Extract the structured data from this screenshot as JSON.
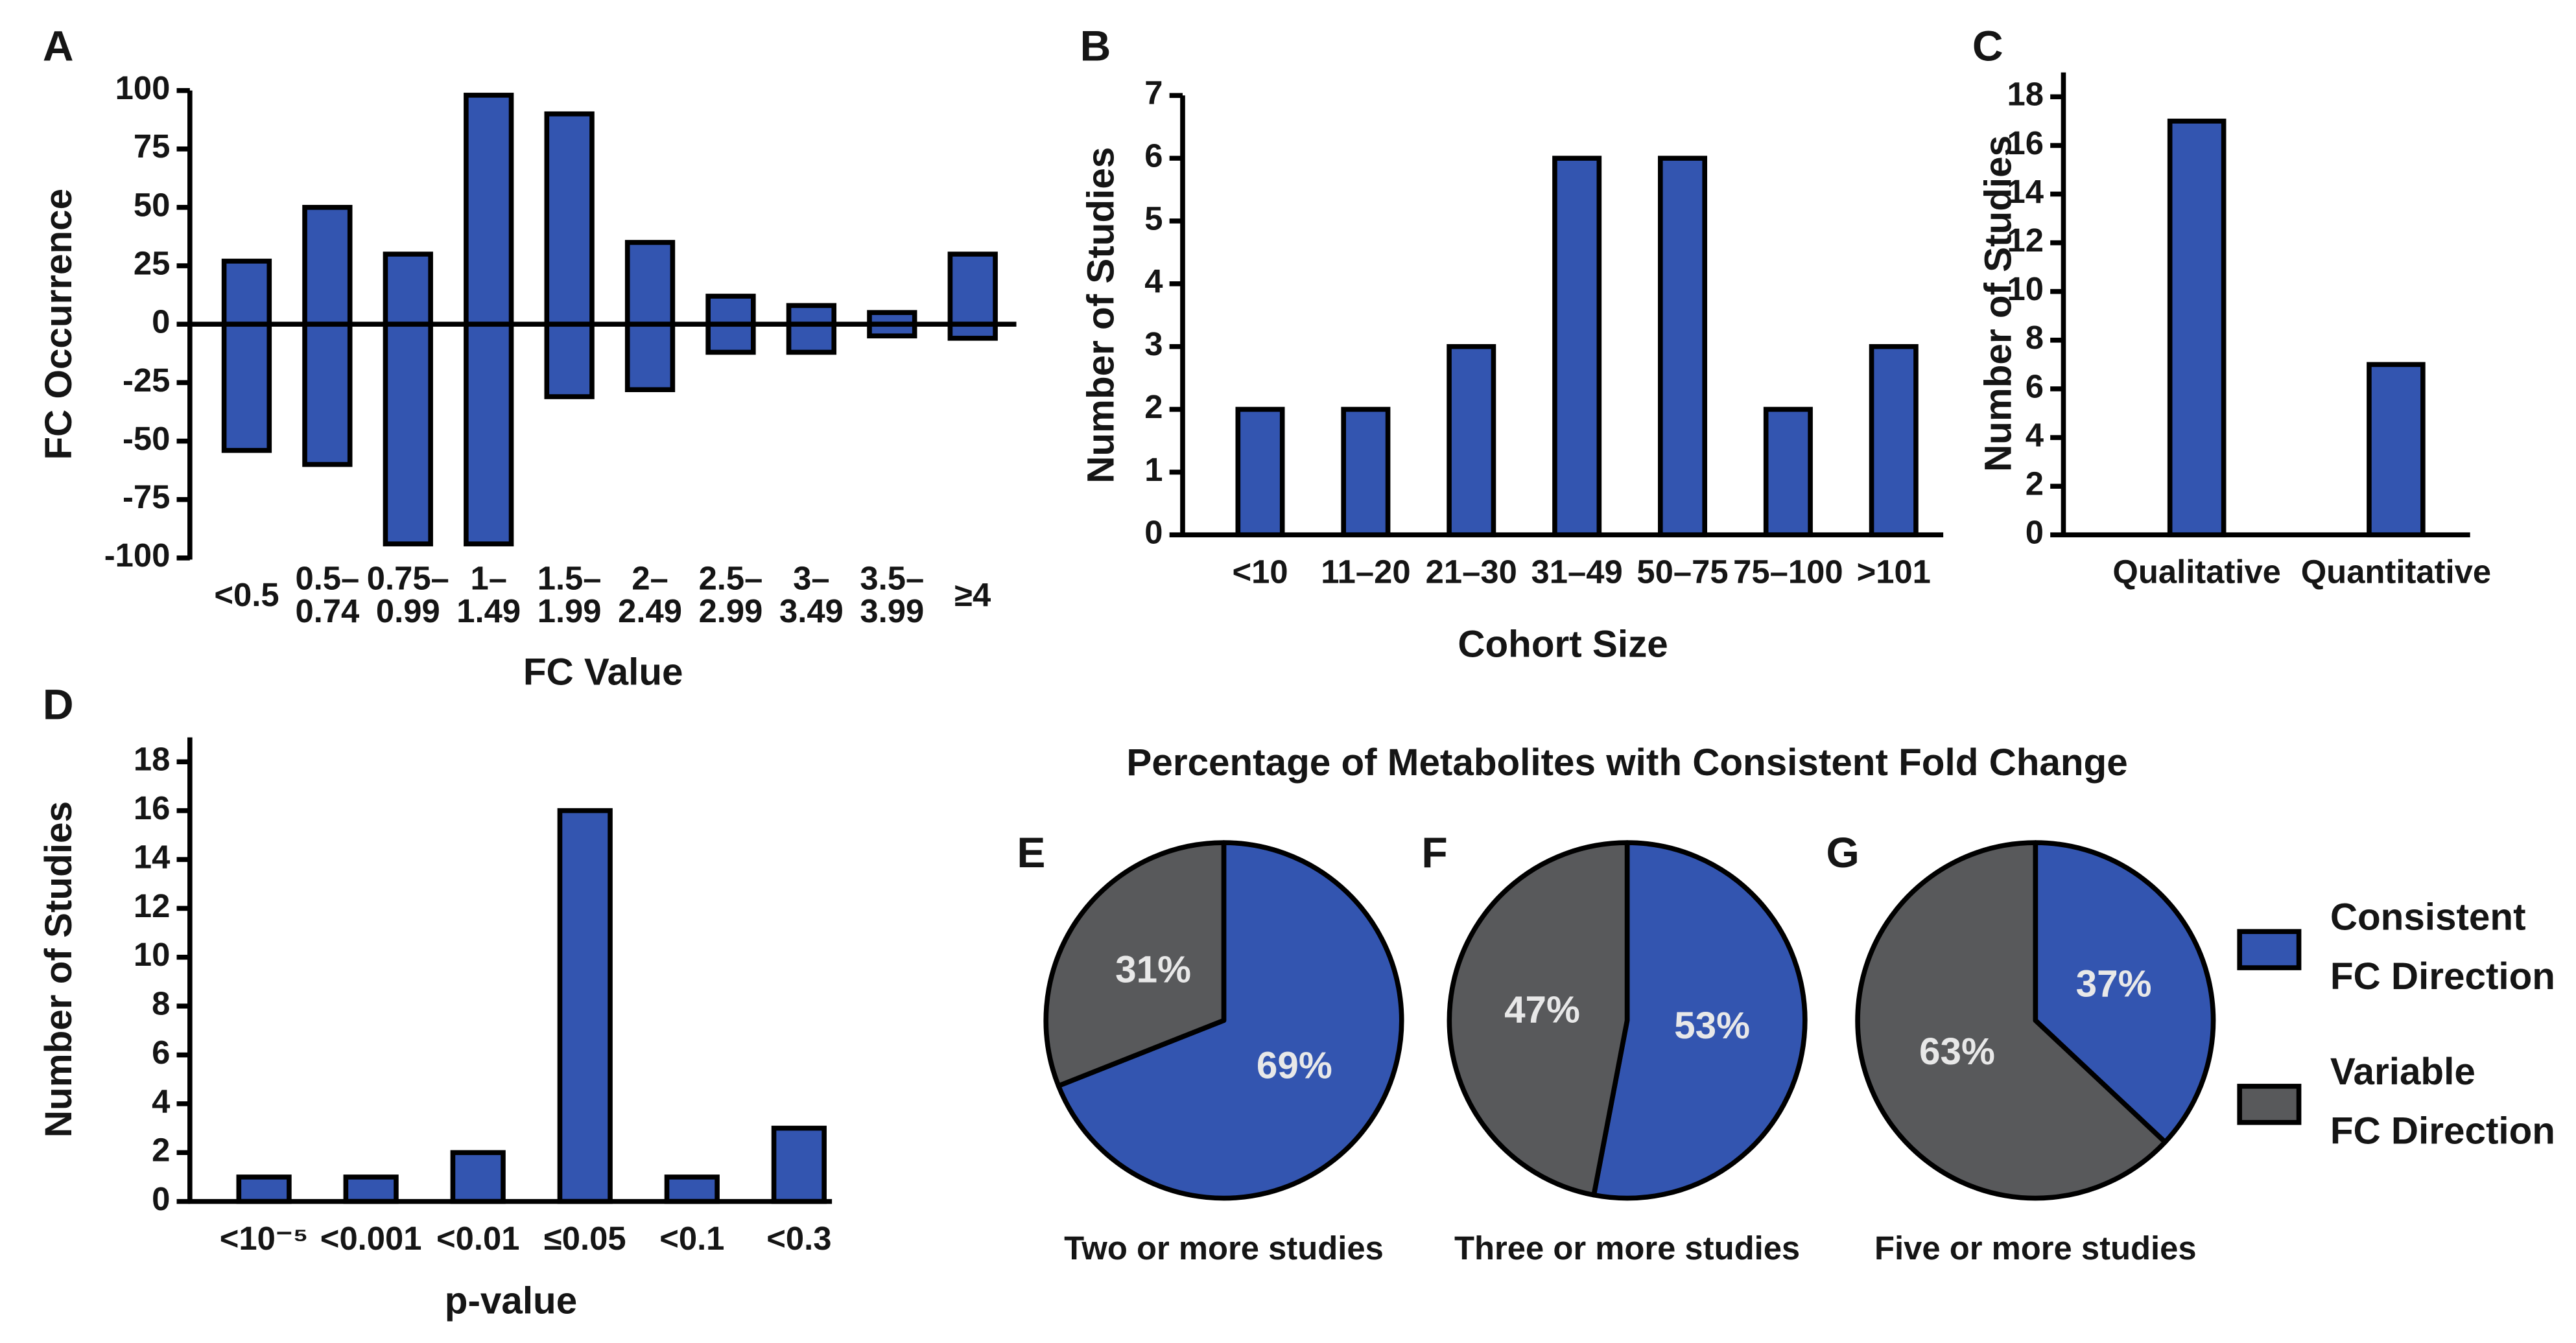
{
  "chart_data": [
    {
      "type": "bar",
      "panel": "A",
      "xlabel": "FC Value",
      "ylabel": "FC Occurrence",
      "categories": [
        "<0.5",
        "0.5–0.74",
        "0.75–0.99",
        "1–1.49",
        "1.5–1.99",
        "2–2.49",
        "2.5–2.99",
        "3–3.49",
        "3.5–3.99",
        "≥4"
      ],
      "series": [
        {
          "color": "#3355b0",
          "values": [
            27,
            50,
            30,
            98,
            90,
            35,
            12,
            8,
            5,
            30
          ]
        },
        {
          "color": "#3355b0",
          "values": [
            -54,
            -60,
            -94,
            -94,
            -31,
            -28,
            -12,
            -12,
            -5,
            -6
          ]
        }
      ],
      "ylim": [
        -100,
        100
      ],
      "yticks": [
        -100,
        -75,
        -50,
        -25,
        0,
        25,
        50,
        75,
        100
      ]
    },
    {
      "type": "bar",
      "panel": "B",
      "xlabel": "Cohort Size",
      "ylabel": "Number of Studies",
      "categories": [
        "<10",
        "11–20",
        "21–30",
        "31–49",
        "50–75",
        "75–100",
        ">101"
      ],
      "series": [
        {
          "color": "#3355b0",
          "values": [
            2,
            2,
            3,
            6,
            6,
            2,
            3
          ]
        }
      ],
      "ylim": [
        0,
        7
      ],
      "yticks": [
        0,
        1,
        2,
        3,
        4,
        5,
        6,
        7
      ]
    },
    {
      "type": "bar",
      "panel": "C",
      "ylabel": "Number of Studies",
      "categories": [
        "Qualitative",
        "Quantitative"
      ],
      "series": [
        {
          "color": "#3355b0",
          "values": [
            17,
            7
          ]
        }
      ],
      "ylim": [
        0,
        19
      ],
      "yticks": [
        0,
        2,
        4,
        6,
        8,
        10,
        12,
        14,
        16,
        18
      ]
    },
    {
      "type": "bar",
      "panel": "D",
      "xlabel": "p-value",
      "ylabel": "Number of Studies",
      "categories": [
        "<10⁻⁵",
        "<0.001",
        "<0.01",
        "≤0.05",
        "<0.1",
        "<0.3"
      ],
      "series": [
        {
          "color": "#3355b0",
          "values": [
            1,
            1,
            2,
            16,
            1,
            3
          ]
        }
      ],
      "ylim": [
        0,
        19
      ],
      "yticks": [
        0,
        2,
        4,
        6,
        8,
        10,
        12,
        14,
        16,
        18
      ]
    },
    {
      "type": "pie-group",
      "title": "Percentage of Metabolites with Consistent Fold Change",
      "legend": [
        {
          "name": "Consistent FC Direction",
          "color": "#3355b0"
        },
        {
          "name": "Variable FC Direction",
          "color": "#58595b"
        }
      ],
      "pies": [
        {
          "panel": "E",
          "caption": "Two or more studies",
          "values": [
            69,
            31
          ],
          "value_labels": [
            "69%",
            "31%"
          ]
        },
        {
          "panel": "F",
          "caption": "Three or more studies",
          "values": [
            53,
            47
          ],
          "value_labels": [
            "53%",
            "47%"
          ]
        },
        {
          "panel": "G",
          "caption": "Five or more studies",
          "values": [
            37,
            63
          ],
          "value_labels": [
            "37%",
            "63%"
          ]
        }
      ]
    }
  ]
}
